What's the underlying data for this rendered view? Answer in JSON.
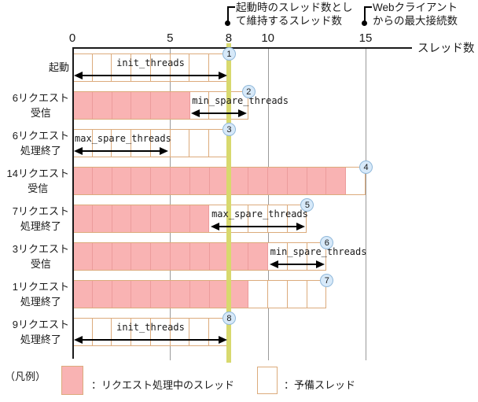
{
  "axis": {
    "label": "スレッド数",
    "ticks": [
      {
        "value": 0,
        "label": "0"
      },
      {
        "value": 5,
        "label": "5"
      },
      {
        "value": 8,
        "label": "8"
      },
      {
        "value": 10,
        "label": "10"
      },
      {
        "value": 15,
        "label": "15"
      }
    ],
    "gridline_values": [
      5,
      10,
      15
    ],
    "highlight_value": 8,
    "max": 15
  },
  "annotations": [
    {
      "name": "maintained-thread-count",
      "at_value": 8,
      "lines": [
        "起動時のスレッド数とし",
        "て維持するスレッド数"
      ]
    },
    {
      "name": "max-web-client-connections",
      "at_value": 15,
      "lines": [
        "Webクライアント",
        "からの最大接続数"
      ]
    }
  ],
  "rows": [
    {
      "label_lines": [
        "起動"
      ],
      "busy": 0,
      "total": 8,
      "badge": "1",
      "param": {
        "name": "init_threads",
        "from": 0,
        "to": 8,
        "label_align": "center"
      }
    },
    {
      "label_lines": [
        "6リクエスト",
        "受信"
      ],
      "busy": 6,
      "total": 9,
      "badge": "2",
      "param": {
        "name": "min_spare_threads",
        "from": 6,
        "to": 9,
        "label_align": "left"
      }
    },
    {
      "label_lines": [
        "6リクエスト",
        "処理終了"
      ],
      "busy": 0,
      "total": 8,
      "badge": "3",
      "param": {
        "name": "max_spare_threads",
        "from": 0,
        "to": 5,
        "label_align": "left"
      }
    },
    {
      "label_lines": [
        "14リクエスト",
        "受信"
      ],
      "busy": 14,
      "total": 15,
      "badge": "4",
      "param": null
    },
    {
      "label_lines": [
        "7リクエスト",
        "処理終了"
      ],
      "busy": 7,
      "total": 12,
      "badge": "5",
      "param": {
        "name": "max_spare_threads",
        "from": 7,
        "to": 12,
        "label_align": "left"
      }
    },
    {
      "label_lines": [
        "3リクエスト",
        "受信"
      ],
      "busy": 10,
      "total": 13,
      "badge": "6",
      "param": {
        "name": "min_spare_threads",
        "from": 10,
        "to": 13,
        "label_align": "left"
      }
    },
    {
      "label_lines": [
        "1リクエスト",
        "処理終了"
      ],
      "busy": 9,
      "total": 13,
      "badge": "7",
      "param": null
    },
    {
      "label_lines": [
        "9リクエスト",
        "処理終了"
      ],
      "busy": 0,
      "total": 8,
      "badge": "8",
      "param": {
        "name": "init_threads",
        "from": 0,
        "to": 8,
        "label_align": "center"
      }
    }
  ],
  "legend": {
    "title": "（凡例）",
    "items": [
      {
        "type": "busy",
        "label": "：リクエスト処理中のスレッド"
      },
      {
        "type": "spare",
        "label": "：予備スレッド"
      }
    ]
  },
  "colors": {
    "busy_fill": "#f9b3b3",
    "busy_divider": "#ec9c9c",
    "cell_border": "#dcab7c",
    "spare_fill": "#ffffff",
    "highlight_band": "#d8d96e",
    "grid": "#9a9a9a",
    "badge_fill": "#d7e9f9",
    "badge_border": "#90b8da",
    "ink": "#000000"
  }
}
